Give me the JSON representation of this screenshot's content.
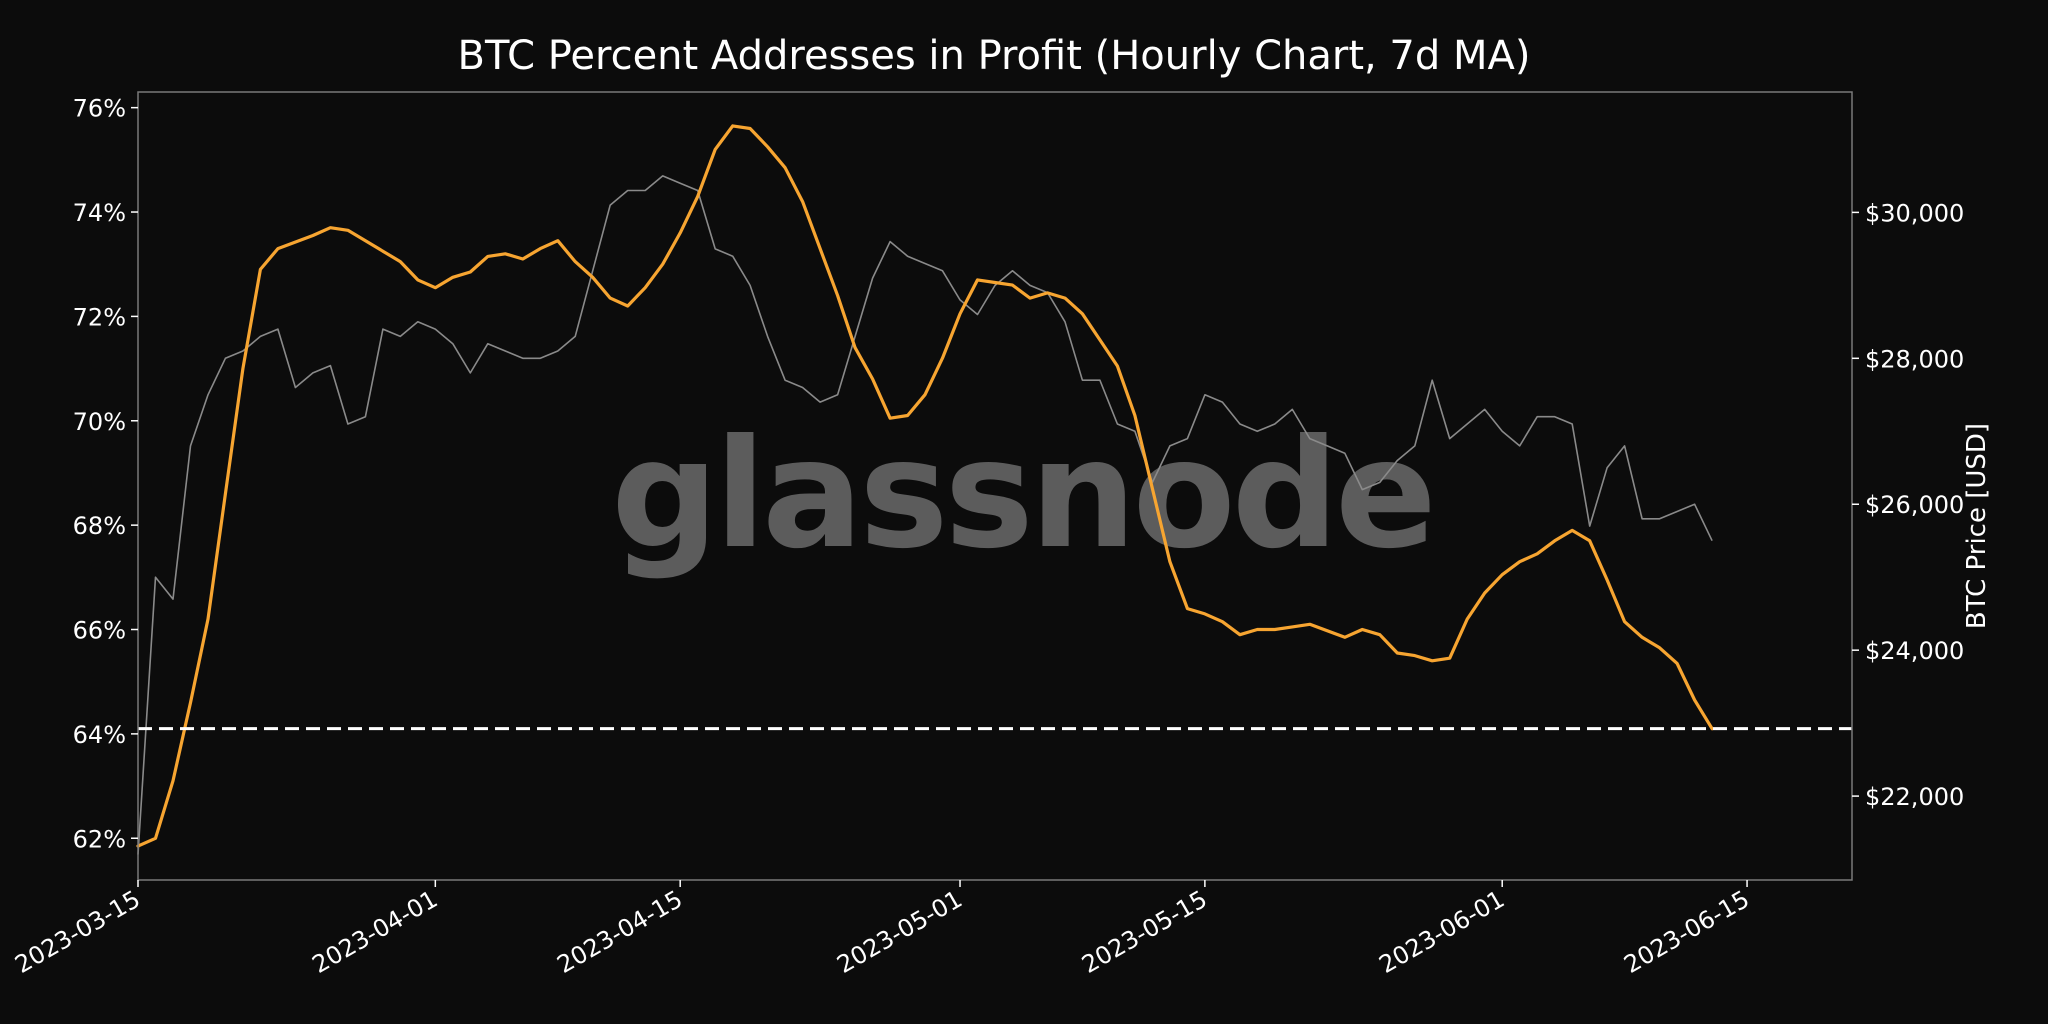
{
  "chart_data": {
    "type": "line",
    "title": "BTC Percent Addresses in Profit (Hourly Chart, 7d MA)",
    "watermark": "glassnode",
    "xlabel": "",
    "ylabel": "",
    "y2label": "BTC Price [USD]",
    "x_ticks": [
      "2023-03-15",
      "2023-04-01",
      "2023-04-15",
      "2023-05-01",
      "2023-05-15",
      "2023-06-01",
      "2023-06-15"
    ],
    "xlim": [
      "2023-03-15",
      "2023-06-21"
    ],
    "y_ticks": [
      "62%",
      "64%",
      "66%",
      "68%",
      "70%",
      "72%",
      "74%",
      "76%"
    ],
    "y_tick_values": [
      62,
      64,
      66,
      68,
      70,
      72,
      74,
      76
    ],
    "ylim": [
      61.2,
      76.3
    ],
    "y2_ticks": [
      "$22,000",
      "$24,000",
      "$26,000",
      "$28,000",
      "$30,000"
    ],
    "y2_tick_values": [
      22000,
      24000,
      26000,
      28000,
      30000
    ],
    "y2lim": [
      20850,
      31650
    ],
    "grid": false,
    "reference_line": {
      "y": 64.1,
      "style": "dashed",
      "color": "#ffffff"
    },
    "colors": {
      "background": "#0c0c0c",
      "percent_line": "#f7a531",
      "price_line": "#8a8a8a",
      "frame": "#7a7a7a"
    },
    "series": [
      {
        "axis": "left",
        "x": [
          "2023-03-15",
          "2023-03-16",
          "2023-03-17",
          "2023-03-18",
          "2023-03-19",
          "2023-03-20",
          "2023-03-21",
          "2023-03-22",
          "2023-03-23",
          "2023-03-25",
          "2023-03-26",
          "2023-03-27",
          "2023-03-29",
          "2023-03-30",
          "2023-03-31",
          "2023-04-01",
          "2023-04-02",
          "2023-04-03",
          "2023-04-04",
          "2023-04-05",
          "2023-04-06",
          "2023-04-07",
          "2023-04-08",
          "2023-04-09",
          "2023-04-10",
          "2023-04-11",
          "2023-04-12",
          "2023-04-13",
          "2023-04-14",
          "2023-04-15",
          "2023-04-16",
          "2023-04-17",
          "2023-04-18",
          "2023-04-19",
          "2023-04-20",
          "2023-04-21",
          "2023-04-22",
          "2023-04-23",
          "2023-04-24",
          "2023-04-25",
          "2023-04-26",
          "2023-04-27",
          "2023-04-28",
          "2023-04-29",
          "2023-04-30",
          "2023-05-01",
          "2023-05-02",
          "2023-05-03",
          "2023-05-04",
          "2023-05-05",
          "2023-05-06",
          "2023-05-07",
          "2023-05-08",
          "2023-05-09",
          "2023-05-10",
          "2023-05-11",
          "2023-05-12",
          "2023-05-13",
          "2023-05-14",
          "2023-05-15",
          "2023-05-16",
          "2023-05-17",
          "2023-05-18",
          "2023-05-19",
          "2023-05-20",
          "2023-05-21",
          "2023-05-23",
          "2023-05-24",
          "2023-05-25",
          "2023-05-26",
          "2023-05-27",
          "2023-05-28",
          "2023-05-29",
          "2023-05-30",
          "2023-05-31",
          "2023-06-01",
          "2023-06-02",
          "2023-06-03",
          "2023-06-04",
          "2023-06-05",
          "2023-06-06",
          "2023-06-07",
          "2023-06-08",
          "2023-06-09",
          "2023-06-10",
          "2023-06-11",
          "2023-06-12",
          "2023-06-13"
        ],
        "values": [
          61.85,
          62.0,
          63.1,
          64.6,
          66.2,
          68.6,
          71.0,
          72.9,
          73.3,
          73.55,
          73.7,
          73.65,
          73.25,
          73.05,
          72.7,
          72.55,
          72.75,
          72.85,
          73.15,
          73.2,
          73.1,
          73.3,
          73.45,
          73.05,
          72.75,
          72.35,
          72.2,
          72.55,
          73.0,
          73.6,
          74.3,
          75.2,
          75.65,
          75.6,
          75.25,
          74.85,
          74.2,
          73.3,
          72.4,
          71.4,
          70.8,
          70.05,
          70.1,
          70.5,
          71.2,
          72.05,
          72.7,
          72.65,
          72.6,
          72.35,
          72.45,
          72.35,
          72.05,
          71.55,
          71.05,
          70.1,
          68.7,
          67.3,
          66.4,
          66.3,
          66.15,
          65.9,
          66.0,
          66.0,
          66.05,
          66.1,
          65.85,
          66.0,
          65.9,
          65.55,
          65.5,
          65.4,
          65.45,
          66.2,
          66.7,
          67.05,
          67.3,
          67.45,
          67.7,
          67.9,
          67.7,
          66.95,
          66.15,
          65.85,
          65.65,
          65.35,
          64.65,
          64.1
        ]
      },
      {
        "axis": "right",
        "x": [
          "2023-03-15",
          "2023-03-16",
          "2023-03-17",
          "2023-03-18",
          "2023-03-19",
          "2023-03-20",
          "2023-03-21",
          "2023-03-22",
          "2023-03-23",
          "2023-03-24",
          "2023-03-25",
          "2023-03-26",
          "2023-03-27",
          "2023-03-28",
          "2023-03-29",
          "2023-03-30",
          "2023-03-31",
          "2023-04-01",
          "2023-04-02",
          "2023-04-03",
          "2023-04-04",
          "2023-04-05",
          "2023-04-06",
          "2023-04-07",
          "2023-04-08",
          "2023-04-09",
          "2023-04-10",
          "2023-04-11",
          "2023-04-12",
          "2023-04-13",
          "2023-04-14",
          "2023-04-15",
          "2023-04-16",
          "2023-04-17",
          "2023-04-18",
          "2023-04-19",
          "2023-04-20",
          "2023-04-21",
          "2023-04-22",
          "2023-04-23",
          "2023-04-24",
          "2023-04-25",
          "2023-04-26",
          "2023-04-27",
          "2023-04-28",
          "2023-04-29",
          "2023-04-30",
          "2023-05-01",
          "2023-05-02",
          "2023-05-03",
          "2023-05-04",
          "2023-05-05",
          "2023-05-06",
          "2023-05-07",
          "2023-05-08",
          "2023-05-09",
          "2023-05-10",
          "2023-05-11",
          "2023-05-12",
          "2023-05-13",
          "2023-05-14",
          "2023-05-15",
          "2023-05-16",
          "2023-05-17",
          "2023-05-18",
          "2023-05-19",
          "2023-05-20",
          "2023-05-21",
          "2023-05-22",
          "2023-05-23",
          "2023-05-24",
          "2023-05-25",
          "2023-05-26",
          "2023-05-27",
          "2023-05-28",
          "2023-05-29",
          "2023-05-30",
          "2023-05-31",
          "2023-06-01",
          "2023-06-02",
          "2023-06-03",
          "2023-06-04",
          "2023-06-05",
          "2023-06-06",
          "2023-06-07",
          "2023-06-08",
          "2023-06-09",
          "2023-06-10",
          "2023-06-11",
          "2023-06-12",
          "2023-06-13"
        ],
        "values": [
          21200,
          25000,
          24700,
          26800,
          27500,
          28000,
          28100,
          28300,
          28400,
          27600,
          27800,
          27900,
          27100,
          27200,
          28400,
          28300,
          28500,
          28400,
          28200,
          27800,
          28200,
          28100,
          28000,
          28000,
          28100,
          28300,
          29200,
          30100,
          30300,
          30300,
          30500,
          30400,
          30300,
          29500,
          29400,
          29000,
          28300,
          27700,
          27600,
          27400,
          27500,
          28300,
          29100,
          29600,
          29400,
          29300,
          29200,
          28800,
          28600,
          29000,
          29200,
          29000,
          28900,
          28500,
          27700,
          27700,
          27100,
          27000,
          26300,
          26800,
          26900,
          27500,
          27400,
          27100,
          27000,
          27100,
          27300,
          26900,
          26800,
          26700,
          26200,
          26300,
          26600,
          26800,
          27700,
          26900,
          27100,
          27300,
          27000,
          26800,
          27200,
          27200,
          27100,
          25700,
          26500,
          26800,
          25800,
          25800,
          25900,
          26000,
          25500
        ]
      }
    ]
  }
}
